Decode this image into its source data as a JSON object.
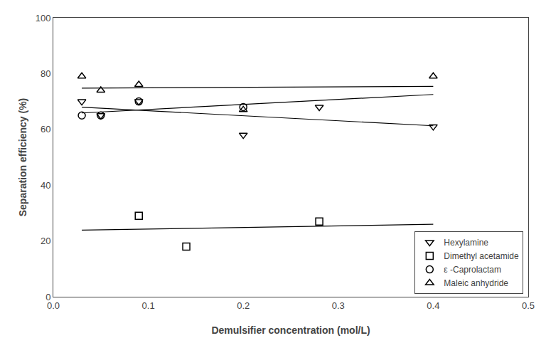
{
  "chart_data": {
    "type": "scatter",
    "xlabel": "Demulsifier concentration (mol/L)",
    "ylabel": "Separation efficiency (%)",
    "xlim": [
      0.0,
      0.5
    ],
    "ylim": [
      0,
      100
    ],
    "xticks": [
      {
        "value": 0,
        "label": "0.0"
      },
      0.1,
      0.2,
      0.3,
      0.4,
      0.5
    ],
    "yticks": [
      0,
      20,
      40,
      60,
      80,
      100
    ],
    "grid": false,
    "legend": "lower right",
    "series": [
      {
        "name": "Hexylamine",
        "color": "black",
        "marker": "triangle-down",
        "x": [
          0.03,
          0.05,
          0.09,
          0.2,
          0.28,
          0.4
        ],
        "values": [
          70,
          65,
          70,
          58,
          68,
          61
        ],
        "trendline": {
          "x": [
            0.03,
            0.4
          ],
          "values": [
            67.9424,
            61.2848
          ]
        }
      },
      {
        "name": "Dimethyl acetamide",
        "color": "black",
        "marker": "square",
        "x": [
          0.09,
          0.14,
          0.28
        ],
        "values": [
          29,
          18,
          27
        ],
        "trendline": {
          "x": [
            0.03,
            0.4
          ],
          "values": [
            23.8729,
            25.9708
          ]
        }
      },
      {
        "name": "ε -Caprolactam",
        "color": "black",
        "marker": "circle",
        "x": [
          0.03,
          0.05,
          0.09,
          0.2
        ],
        "values": [
          65,
          65,
          70,
          68
        ],
        "trendline": {
          "x": [
            0.03,
            0.4
          ],
          "values": [
            65.8784,
            72.5181
          ]
        }
      },
      {
        "name": "Maleic anhydride",
        "color": "black",
        "marker": "triangle-up",
        "x": [
          0.03,
          0.05,
          0.09,
          0.2,
          0.4
        ],
        "values": [
          79,
          74,
          76,
          67,
          79
        ],
        "trendline": {
          "x": [
            0.03,
            0.4
          ],
          "values": [
            74.7865,
            75.4236
          ]
        }
      }
    ]
  }
}
